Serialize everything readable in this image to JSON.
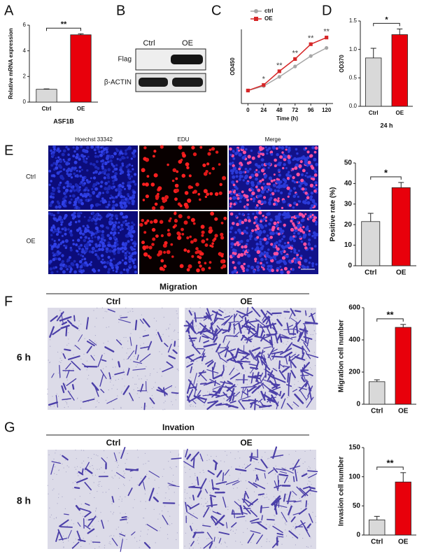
{
  "panels": [
    "A",
    "B",
    "C",
    "D",
    "E",
    "F",
    "G"
  ],
  "blot": {
    "lanes": [
      "Ctrl",
      "OE"
    ],
    "rows": [
      "Flag",
      "β-ACTIN"
    ]
  },
  "images": {
    "E": {
      "columns": [
        "Hoechst 33342",
        "EDU",
        "Merge"
      ],
      "rows": [
        "Ctrl",
        "OE"
      ]
    },
    "F": {
      "title": "Migration",
      "columns": [
        "Ctrl",
        "OE"
      ],
      "time": "6 h"
    },
    "G": {
      "title": "Invation",
      "columns": [
        "Ctrl",
        "OE"
      ],
      "time": "8 h"
    }
  },
  "chart_data": [
    {
      "type": "bar",
      "ylabel": "Relative mRNA expression",
      "xlabel": "ASF1B",
      "categories": [
        "Ctrl",
        "OE"
      ],
      "values": [
        1,
        5.25
      ],
      "errors": [
        0.03,
        0.08
      ],
      "colors": [
        "#d9d9d9",
        "#e8000b"
      ],
      "ylim": [
        0,
        6
      ],
      "yticks": [
        0,
        2,
        4,
        6
      ],
      "annotation": "**"
    },
    {
      "type": "line",
      "ylabel": "OD450",
      "xlabel": "Time (h)",
      "x": [
        0,
        24,
        48,
        72,
        96,
        120
      ],
      "xlim": [
        -10,
        130
      ],
      "xticks": [
        0,
        24,
        48,
        72,
        96,
        120
      ],
      "ylim": [
        0,
        2
      ],
      "series": [
        {
          "name": "ctrl",
          "color": "#a6a6a6",
          "values": [
            0.35,
            0.47,
            0.72,
            1.0,
            1.28,
            1.5
          ]
        },
        {
          "name": "OE",
          "color": "#d62728",
          "values": [
            0.35,
            0.5,
            0.87,
            1.2,
            1.6,
            1.78
          ]
        }
      ],
      "annotations": [
        {
          "x": 24,
          "label": "*"
        },
        {
          "x": 48,
          "label": "**"
        },
        {
          "x": 72,
          "label": "**"
        },
        {
          "x": 96,
          "label": "**"
        },
        {
          "x": 120,
          "label": "**"
        }
      ]
    },
    {
      "type": "bar",
      "ylabel": "OD370",
      "xlabel": "24 h",
      "categories": [
        "Ctrl",
        "OE"
      ],
      "values": [
        0.85,
        1.26
      ],
      "errors": [
        0.17,
        0.1
      ],
      "colors": [
        "#d9d9d9",
        "#e8000b"
      ],
      "ylim": [
        0,
        1.5
      ],
      "yticks": [
        {
          "value": 0,
          "label": "0.0"
        },
        {
          "value": 0.5,
          "label": "0.5"
        },
        {
          "value": 1,
          "label": "1.0"
        },
        {
          "value": 1.5,
          "label": "1.5"
        }
      ],
      "annotation": "*"
    },
    {
      "type": "bar",
      "ylabel": "Positive rate (%)",
      "categories": [
        "Ctrl",
        "OE"
      ],
      "values": [
        21.5,
        38
      ],
      "errors": [
        4,
        2.5
      ],
      "colors": [
        "#d9d9d9",
        "#e8000b"
      ],
      "ylim": [
        0,
        50
      ],
      "yticks": [
        0,
        10,
        20,
        30,
        40,
        50
      ],
      "annotation": "*"
    },
    {
      "type": "bar",
      "ylabel": "Migration cell number",
      "categories": [
        "Ctrl",
        "OE"
      ],
      "values": [
        140,
        478
      ],
      "errors": [
        12,
        18
      ],
      "colors": [
        "#d9d9d9",
        "#e8000b"
      ],
      "ylim": [
        0,
        600
      ],
      "yticks": [
        0,
        200,
        400,
        600
      ],
      "annotation": "**"
    },
    {
      "type": "bar",
      "ylabel": "Invasion cell number",
      "categories": [
        "Ctrl",
        "OE"
      ],
      "values": [
        26,
        91
      ],
      "errors": [
        6,
        16
      ],
      "colors": [
        "#d9d9d9",
        "#e8000b"
      ],
      "ylim": [
        0,
        150
      ],
      "yticks": [
        0,
        50,
        100,
        150
      ],
      "annotation": "**"
    }
  ]
}
